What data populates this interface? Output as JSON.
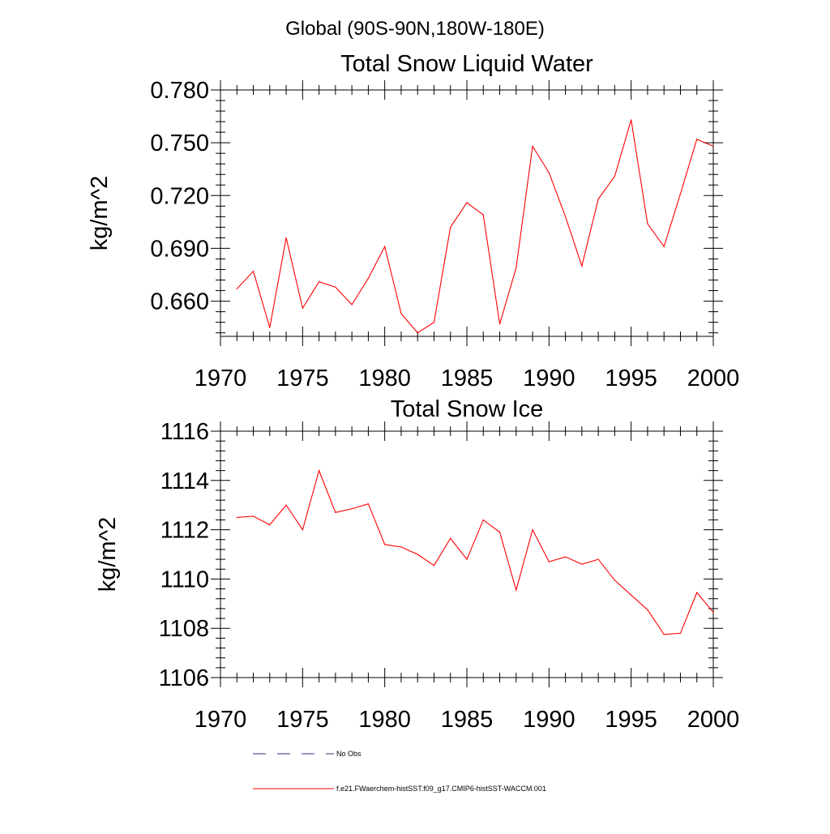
{
  "suptitle": "Global (90S-90N,180W-180E)",
  "legend": [
    {
      "label": "No Obs",
      "color": "#30307a",
      "dash": "dashed"
    },
    {
      "label": "f.e21.FWaerchem-histSST.f09_g17.CMIP6-histSST-WACCM.001",
      "color": "#ff0000",
      "dash": "solid"
    }
  ],
  "chart_data": [
    {
      "type": "line",
      "title": "Total Snow Liquid Water",
      "xlabel": "",
      "ylabel": "kg/m^2",
      "xlim": [
        1970,
        2000
      ],
      "ylim": [
        0.64,
        0.78
      ],
      "xticks": [
        1970,
        1975,
        1980,
        1985,
        1990,
        1995,
        2000
      ],
      "xtick_labels": [
        "1970",
        "1975",
        "1980",
        "1985",
        "1990",
        "1995",
        "2000"
      ],
      "yticks": [
        0.66,
        0.69,
        0.72,
        0.75,
        0.78
      ],
      "ytick_labels": [
        "0.660",
        "0.690",
        "0.720",
        "0.750",
        "0.780"
      ],
      "grid": false,
      "series": [
        {
          "name": "f.e21.FWaerchem-histSST.f09_g17.CMIP6-histSST-WACCM.001",
          "color": "#ff0000",
          "x": [
            1971,
            1972,
            1973,
            1974,
            1975,
            1976,
            1977,
            1978,
            1979,
            1980,
            1981,
            1982,
            1983,
            1984,
            1985,
            1986,
            1987,
            1988,
            1989,
            1990,
            1991,
            1992,
            1993,
            1994,
            1995,
            1996,
            1997,
            1998,
            1999,
            2000
          ],
          "values": [
            0.667,
            0.677,
            0.645,
            0.696,
            0.656,
            0.671,
            0.668,
            0.658,
            0.673,
            0.691,
            0.653,
            0.642,
            0.648,
            0.702,
            0.716,
            0.709,
            0.647,
            0.679,
            0.748,
            0.733,
            0.708,
            0.68,
            0.718,
            0.731,
            0.763,
            0.704,
            0.691,
            0.721,
            0.752,
            0.748
          ]
        }
      ]
    },
    {
      "type": "line",
      "title": "Total Snow Ice",
      "xlabel": "",
      "ylabel": "kg/m^2",
      "xlim": [
        1970,
        2000
      ],
      "ylim": [
        1106,
        1116
      ],
      "xticks": [
        1970,
        1975,
        1980,
        1985,
        1990,
        1995,
        2000
      ],
      "xtick_labels": [
        "1970",
        "1975",
        "1980",
        "1985",
        "1990",
        "1995",
        "2000"
      ],
      "yticks": [
        1106,
        1108,
        1110,
        1112,
        1114,
        1116
      ],
      "ytick_labels": [
        "1106",
        "1108",
        "1110",
        "1112",
        "1114",
        "1116"
      ],
      "grid": false,
      "series": [
        {
          "name": "f.e21.FWaerchem-histSST.f09_g17.CMIP6-histSST-WACCM.001",
          "color": "#ff0000",
          "x": [
            1971,
            1972,
            1973,
            1974,
            1975,
            1976,
            1977,
            1978,
            1979,
            1980,
            1981,
            1982,
            1983,
            1984,
            1985,
            1986,
            1987,
            1988,
            1989,
            1990,
            1991,
            1992,
            1993,
            1994,
            1995,
            1996,
            1997,
            1998,
            1999,
            2000
          ],
          "values": [
            1112.5,
            1112.55,
            1112.2,
            1113.0,
            1112.0,
            1114.4,
            1112.7,
            1112.85,
            1113.05,
            1111.4,
            1111.3,
            1111.0,
            1110.55,
            1111.65,
            1110.8,
            1112.4,
            1111.9,
            1109.55,
            1112.0,
            1110.7,
            1110.9,
            1110.6,
            1110.8,
            1109.95,
            1109.35,
            1108.75,
            1107.75,
            1107.8,
            1109.45,
            1108.65
          ]
        }
      ]
    }
  ]
}
